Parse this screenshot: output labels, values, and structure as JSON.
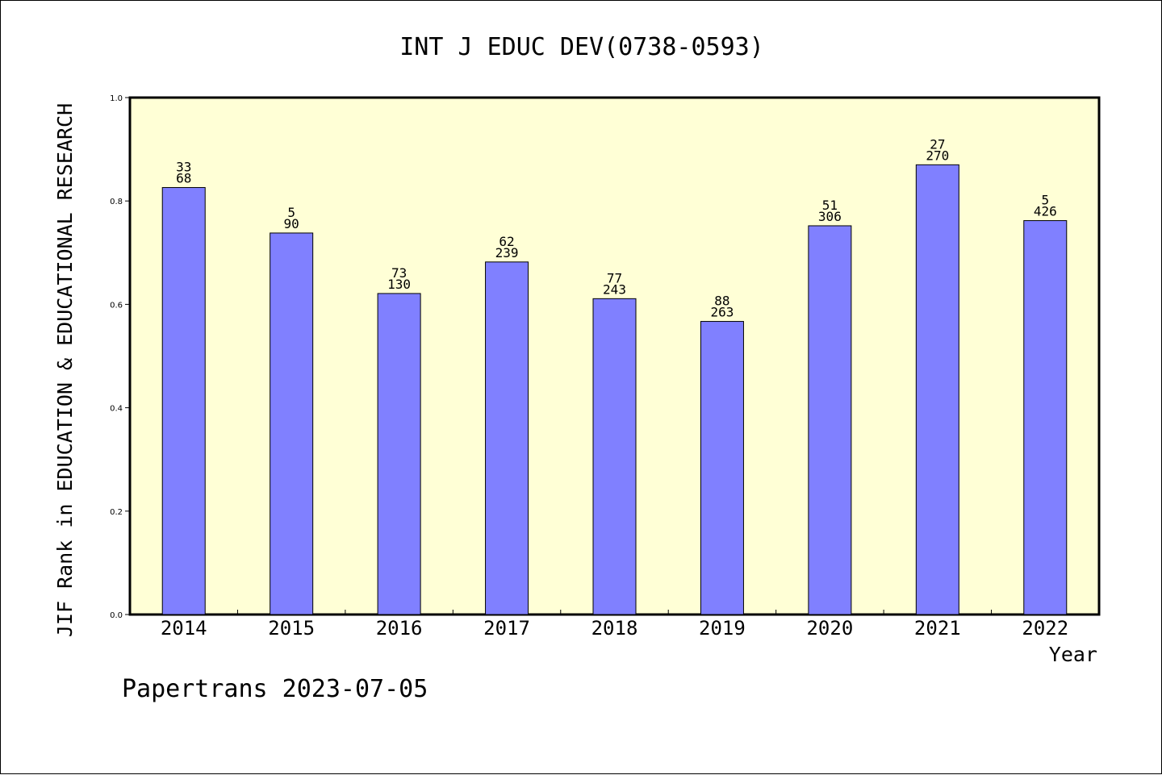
{
  "chart_data": {
    "type": "bar",
    "title": "INT J EDUC DEV(0738-0593)",
    "xlabel": "Year",
    "ylabel": "JIF Rank in EDUCATION & EDUCATIONAL RESEARCH",
    "ylim": [
      0,
      1.0
    ],
    "yticks": [
      "0.0",
      "0.2",
      "0.4",
      "0.6",
      "0.8",
      "1.0"
    ],
    "grid": false,
    "categories": [
      "2014",
      "2015",
      "2016",
      "2017",
      "2018",
      "2019",
      "2020",
      "2021",
      "2022"
    ],
    "values": [
      0.826,
      0.738,
      0.621,
      0.682,
      0.611,
      0.567,
      0.752,
      0.87,
      0.762
    ],
    "rank_labels": [
      "33",
      "5",
      "73",
      "62",
      "77",
      "88",
      "51",
      "27",
      "5"
    ],
    "total_labels": [
      "68",
      "90",
      "130",
      "239",
      "243",
      "263",
      "306",
      "270",
      "426"
    ],
    "colors": {
      "plot_background": "#ffffd6",
      "bar_fill": "#8080ff",
      "bar_stroke": "#000000"
    }
  },
  "footer": "Papertrans 2023-07-05"
}
